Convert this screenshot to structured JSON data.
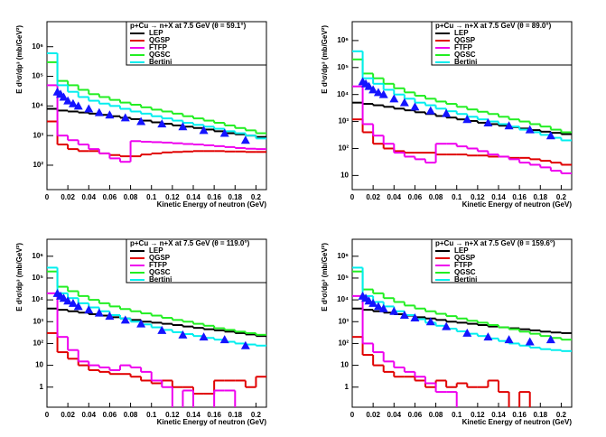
{
  "chart_data": [
    {
      "type": "histogram",
      "title": "p+Cu → n+X at 7.5 GeV (θ = 59.1°)",
      "x_label": "Kinetic Energy of neutron (GeV)",
      "y_label": "E d³σ/dp³ (mb/GeV²)",
      "log_y": true,
      "legend": "top-right",
      "xlim": [
        0,
        0.21
      ],
      "xticks": [
        0,
        0.02,
        0.04,
        0.06,
        0.08,
        0.1,
        0.12,
        0.14,
        0.16,
        0.18,
        0.2
      ],
      "ylim": [
        15,
        7000000
      ],
      "yticks": [
        {
          "value": 100,
          "label": "10²"
        },
        {
          "value": 1000,
          "label": "10³"
        },
        {
          "value": 10000,
          "label": "10⁴"
        },
        {
          "value": 100000,
          "label": "10⁵"
        },
        {
          "value": 1000000,
          "label": "10⁶"
        }
      ],
      "bins": [
        0,
        0.01,
        0.02,
        0.03,
        0.04,
        0.05,
        0.06,
        0.07,
        0.08,
        0.09,
        0.1,
        0.11,
        0.12,
        0.13,
        0.14,
        0.15,
        0.16,
        0.17,
        0.18,
        0.19,
        0.2,
        0.21
      ],
      "series": [
        {
          "name": "LEP",
          "color": "#000000",
          "values": [
            8000,
            7000,
            6500,
            6000,
            5500,
            5000,
            4500,
            4000,
            3600,
            3200,
            2800,
            2500,
            2200,
            2000,
            1800,
            1600,
            1400,
            1200,
            1100,
            1000,
            900
          ]
        },
        {
          "name": "QGSP",
          "color": "#e00000",
          "values": [
            3000,
            500,
            350,
            300,
            300,
            250,
            220,
            200,
            200,
            230,
            250,
            270,
            280,
            290,
            300,
            300,
            300,
            290,
            290,
            280,
            280
          ]
        },
        {
          "name": "FTFP",
          "color": "#ee00ee",
          "values": [
            50000,
            1000,
            700,
            500,
            350,
            250,
            170,
            130,
            650,
            620,
            600,
            580,
            550,
            520,
            500,
            470,
            440,
            410,
            380,
            360,
            350
          ]
        },
        {
          "name": "QGSC",
          "color": "#22ee22",
          "values": [
            300000,
            70000,
            50000,
            35000,
            25000,
            20000,
            16000,
            13000,
            11000,
            9000,
            7500,
            6500,
            5500,
            4500,
            3800,
            3200,
            2700,
            2200,
            1800,
            1500,
            1200
          ]
        },
        {
          "name": "Bertini",
          "color": "#00eeee",
          "values": [
            600000,
            50000,
            30000,
            20000,
            15000,
            12000,
            10000,
            8000,
            6500,
            5500,
            4500,
            3800,
            3200,
            2700,
            2300,
            2000,
            1700,
            1400,
            1200,
            1000,
            800
          ]
        }
      ],
      "markers": {
        "color": "#1414ff",
        "x": [
          0.01,
          0.013,
          0.016,
          0.02,
          0.025,
          0.03,
          0.04,
          0.05,
          0.06,
          0.075,
          0.09,
          0.11,
          0.13,
          0.15,
          0.17,
          0.19
        ],
        "values": [
          30000,
          25000,
          20000,
          15000,
          12000,
          10000,
          8000,
          6000,
          5000,
          4000,
          3000,
          2500,
          2000,
          1500,
          1200,
          700
        ]
      }
    },
    {
      "type": "histogram",
      "title": "p+Cu → n+X at 7.5 GeV (θ = 89.0°)",
      "x_label": "Kinetic Energy of neutron (GeV)",
      "y_label": "E d³σ/dp³ (mb/GeV²)",
      "log_y": true,
      "legend": "top-right",
      "xlim": [
        0,
        0.21
      ],
      "xticks": [
        0,
        0.02,
        0.04,
        0.06,
        0.08,
        0.1,
        0.12,
        0.14,
        0.16,
        0.18,
        0.2
      ],
      "ylim": [
        3,
        5000000
      ],
      "yticks": [
        10,
        {
          "value": 100,
          "label": "10²"
        },
        {
          "value": 1000,
          "label": "10³"
        },
        {
          "value": 10000,
          "label": "10⁴"
        },
        {
          "value": 100000,
          "label": "10⁵"
        },
        {
          "value": 1000000,
          "label": "10⁶"
        }
      ],
      "bins": [
        0,
        0.01,
        0.02,
        0.03,
        0.04,
        0.05,
        0.06,
        0.07,
        0.08,
        0.09,
        0.1,
        0.11,
        0.12,
        0.13,
        0.14,
        0.15,
        0.16,
        0.17,
        0.18,
        0.19,
        0.2,
        0.21
      ],
      "series": [
        {
          "name": "LEP",
          "color": "#000000",
          "values": [
            5000,
            4500,
            4000,
            3500,
            3000,
            2600,
            2200,
            1900,
            1600,
            1400,
            1200,
            1050,
            900,
            800,
            700,
            620,
            550,
            480,
            420,
            380,
            340
          ]
        },
        {
          "name": "QGSP",
          "color": "#e00000",
          "values": [
            1200,
            400,
            150,
            100,
            80,
            70,
            70,
            70,
            60,
            60,
            60,
            55,
            55,
            50,
            50,
            45,
            45,
            40,
            35,
            30,
            25
          ]
        },
        {
          "name": "FTFP",
          "color": "#ee00ee",
          "values": [
            20000,
            800,
            300,
            150,
            70,
            50,
            40,
            30,
            150,
            150,
            120,
            100,
            80,
            60,
            50,
            40,
            30,
            25,
            20,
            15,
            12
          ]
        },
        {
          "name": "QGSC",
          "color": "#22ee22",
          "values": [
            200000,
            60000,
            40000,
            25000,
            17000,
            12000,
            9000,
            7000,
            5500,
            4500,
            3500,
            2800,
            2300,
            1900,
            1500,
            1200,
            1000,
            800,
            650,
            500,
            400
          ]
        },
        {
          "name": "Bertini",
          "color": "#00eeee",
          "values": [
            400000,
            40000,
            25000,
            15000,
            10000,
            7000,
            5000,
            4000,
            3000,
            2400,
            1900,
            1500,
            1200,
            1000,
            800,
            650,
            500,
            400,
            320,
            250,
            200
          ]
        }
      ],
      "markers": {
        "color": "#1414ff",
        "x": [
          0.01,
          0.013,
          0.016,
          0.02,
          0.025,
          0.03,
          0.04,
          0.05,
          0.06,
          0.075,
          0.09,
          0.11,
          0.13,
          0.15,
          0.17,
          0.19
        ],
        "values": [
          30000,
          25000,
          20000,
          15000,
          12000,
          10000,
          7000,
          5000,
          3500,
          2500,
          2000,
          1200,
          900,
          700,
          500,
          300
        ]
      }
    },
    {
      "type": "histogram",
      "title": "p+Cu → n+X at 7.5 GeV (θ = 119.0°)",
      "x_label": "Kinetic Energy of neutron (GeV)",
      "y_label": "E d³σ/dp³ (mb/GeV²)",
      "log_y": true,
      "legend": "top-right",
      "xlim": [
        0,
        0.21
      ],
      "xticks": [
        0,
        0.02,
        0.04,
        0.06,
        0.08,
        0.1,
        0.12,
        0.14,
        0.16,
        0.18,
        0.2
      ],
      "ylim": [
        0.12,
        6000000
      ],
      "yticks": [
        1,
        10,
        {
          "value": 100,
          "label": "10²"
        },
        {
          "value": 1000,
          "label": "10³"
        },
        {
          "value": 10000,
          "label": "10⁴"
        },
        {
          "value": 100000,
          "label": "10⁵"
        },
        {
          "value": 1000000,
          "label": "10⁶"
        }
      ],
      "bins": [
        0,
        0.01,
        0.02,
        0.03,
        0.04,
        0.05,
        0.06,
        0.07,
        0.08,
        0.09,
        0.1,
        0.11,
        0.12,
        0.13,
        0.14,
        0.15,
        0.16,
        0.17,
        0.18,
        0.19,
        0.2,
        0.21
      ],
      "series": [
        {
          "name": "LEP",
          "color": "#000000",
          "values": [
            4000,
            3500,
            3000,
            2600,
            2200,
            1900,
            1600,
            1400,
            1200,
            1000,
            900,
            800,
            700,
            600,
            520,
            450,
            400,
            350,
            300,
            260,
            220
          ]
        },
        {
          "name": "QGSP",
          "color": "#e00000",
          "values": [
            300,
            40,
            20,
            10,
            6,
            5,
            4,
            4,
            3,
            2,
            1.5,
            2,
            1,
            1,
            0.5,
            0.5,
            2,
            2,
            2,
            1,
            3
          ]
        },
        {
          "name": "FTFP",
          "color": "#ee00ee",
          "values": [
            20000,
            200,
            50,
            15,
            10,
            8,
            6,
            10,
            8,
            5,
            2,
            1,
            0,
            0.7,
            0,
            0,
            0.7,
            0.7,
            0,
            0,
            0
          ]
        },
        {
          "name": "QGSC",
          "color": "#22ee22",
          "values": [
            200000,
            40000,
            25000,
            15000,
            10000,
            7000,
            5000,
            3800,
            3000,
            2400,
            1900,
            1500,
            1200,
            1000,
            800,
            650,
            500,
            420,
            350,
            300,
            250
          ]
        },
        {
          "name": "Bertini",
          "color": "#00eeee",
          "values": [
            300000,
            20000,
            12000,
            7000,
            4500,
            3000,
            2000,
            1400,
            1000,
            750,
            550,
            420,
            330,
            270,
            220,
            180,
            150,
            120,
            100,
            90,
            80
          ]
        }
      ],
      "markers": {
        "color": "#1414ff",
        "x": [
          0.01,
          0.013,
          0.016,
          0.02,
          0.025,
          0.03,
          0.04,
          0.05,
          0.06,
          0.075,
          0.09,
          0.11,
          0.13,
          0.15,
          0.17,
          0.19
        ],
        "values": [
          20000,
          15000,
          12000,
          9000,
          7000,
          5000,
          3500,
          2500,
          1800,
          1200,
          800,
          400,
          250,
          200,
          150,
          80
        ]
      }
    },
    {
      "type": "histogram",
      "title": "p+Cu → n+X at 7.5 GeV (θ = 159.6°)",
      "x_label": "Kinetic Energy of neutron (GeV)",
      "y_label": "E d³σ/dp³ (mb/GeV²)",
      "log_y": true,
      "legend": "top-right",
      "xlim": [
        0,
        0.21
      ],
      "xticks": [
        0,
        0.02,
        0.04,
        0.06,
        0.08,
        0.1,
        0.12,
        0.14,
        0.16,
        0.18,
        0.2
      ],
      "ylim": [
        0.12,
        6000000
      ],
      "yticks": [
        1,
        10,
        {
          "value": 100,
          "label": "10²"
        },
        {
          "value": 1000,
          "label": "10³"
        },
        {
          "value": 10000,
          "label": "10⁴"
        },
        {
          "value": 100000,
          "label": "10⁵"
        },
        {
          "value": 1000000,
          "label": "10⁶"
        }
      ],
      "bins": [
        0,
        0.01,
        0.02,
        0.03,
        0.04,
        0.05,
        0.06,
        0.07,
        0.08,
        0.09,
        0.1,
        0.11,
        0.12,
        0.13,
        0.14,
        0.15,
        0.16,
        0.17,
        0.18,
        0.19,
        0.2,
        0.21
      ],
      "series": [
        {
          "name": "LEP",
          "color": "#000000",
          "values": [
            4000,
            3500,
            3000,
            2600,
            2200,
            1900,
            1600,
            1400,
            1200,
            1000,
            900,
            800,
            700,
            600,
            550,
            500,
            450,
            400,
            350,
            320,
            300
          ]
        },
        {
          "name": "QGSP",
          "color": "#e00000",
          "values": [
            200,
            30,
            10,
            5,
            3,
            3,
            2,
            1,
            2,
            1,
            1.5,
            1,
            1,
            2,
            0.6,
            0,
            0.6,
            0,
            0,
            0,
            0
          ]
        },
        {
          "name": "FTFP",
          "color": "#ee00ee",
          "values": [
            15000,
            100,
            40,
            15,
            8,
            5,
            3,
            1.5,
            0.6,
            0.6,
            0,
            0,
            0,
            0,
            0,
            0,
            0,
            0,
            0,
            0,
            0
          ]
        },
        {
          "name": "QGSC",
          "color": "#22ee22",
          "values": [
            200000,
            30000,
            20000,
            12000,
            8000,
            5500,
            4000,
            3000,
            2300,
            1800,
            1400,
            1100,
            900,
            700,
            550,
            450,
            350,
            280,
            220,
            180,
            150
          ]
        },
        {
          "name": "Bertini",
          "color": "#00eeee",
          "values": [
            300000,
            15000,
            8000,
            5000,
            3000,
            2000,
            1300,
            900,
            650,
            480,
            360,
            280,
            220,
            170,
            130,
            100,
            80,
            65,
            55,
            50,
            45
          ]
        }
      ],
      "markers": {
        "color": "#1414ff",
        "x": [
          0.01,
          0.013,
          0.016,
          0.02,
          0.025,
          0.03,
          0.04,
          0.05,
          0.06,
          0.075,
          0.09,
          0.11,
          0.13,
          0.15,
          0.17,
          0.19
        ],
        "values": [
          15000,
          12000,
          9000,
          7000,
          5000,
          4000,
          3000,
          2000,
          1500,
          1000,
          600,
          300,
          200,
          150,
          120,
          150
        ]
      }
    }
  ]
}
